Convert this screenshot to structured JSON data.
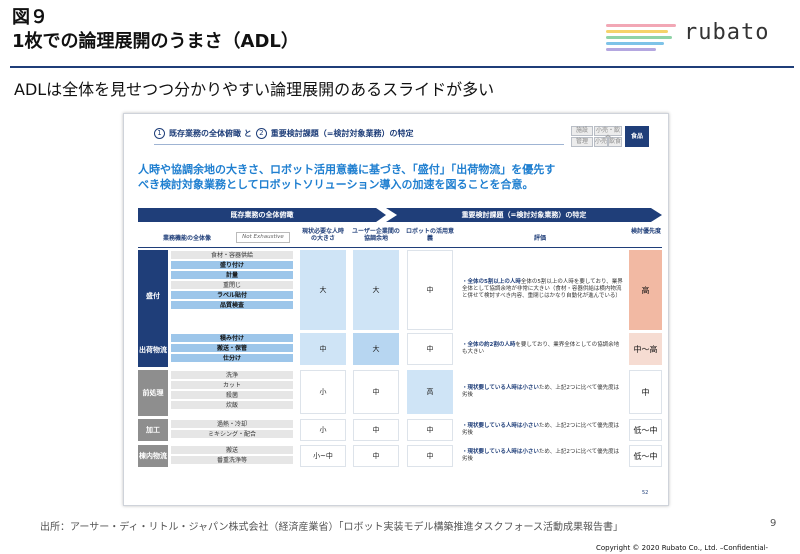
{
  "slide": {
    "title_line1": "図９",
    "title_line2": "1枚での論理展開のうまさ（ADL）",
    "subtitle": "ADLは全体を見せつつ分かりやすい論理展開のあるスライドが多い",
    "page_number": "9",
    "source": "出所：アーサー・ディ・リトル・ジャパン株式会社（経済産業省）「ロボット実装モデル構築推進タスクフォース活動成果報告書」",
    "copyright": "Copyright © 2020 Rubato Co., Ltd. –Confidential-"
  },
  "logo": {
    "text": "rubato",
    "line_colors": [
      "#f2a7b5",
      "#f5d36b",
      "#8fd3a7",
      "#7ec3e8",
      "#b4a7e0"
    ]
  },
  "inset": {
    "steps": {
      "n1": "1",
      "s1": "既存業務の全体俯瞰 と",
      "n2": "2",
      "s2": "重要検討課題（=検討対象業務）の特定"
    },
    "tags": [
      {
        "label": "施設",
        "selected": false
      },
      {
        "label": "小売・飲食",
        "selected": false
      },
      {
        "label": "管理",
        "selected": false
      },
      {
        "label": "小売",
        "selected": false
      },
      {
        "label": "飲食",
        "selected": false
      },
      {
        "label": "食品",
        "selected": true
      }
    ],
    "headline_1": "人時や協調余地の大きさ、ロボット活用意義に基づき、「盛付」「出荷物流」を優先す",
    "headline_2": "べき検討対象業務としてロボットソリューション導入の加速を図ることを合意。",
    "bar_left": "既存業務の全体俯瞰",
    "bar_right": "重要検討課題（=検討対象業務）の特定",
    "col_heads": {
      "func": "業務機能の全体像",
      "not_exhaustive": "Not Exhaustive",
      "labor": "現状必要な人時の大きさ",
      "user": "ユーザー企業間の協調余地",
      "robot": "ロボットの活用意義",
      "eval": "評価",
      "priority": "検討優先度"
    },
    "groups": [
      {
        "name": "盛付",
        "tasks": [
          {
            "t": "食材・容器供給",
            "hi": false
          },
          {
            "t": "盛り付け",
            "hi": true
          },
          {
            "t": "計量",
            "hi": true
          },
          {
            "t": "重閉じ",
            "hi": false
          },
          {
            "t": "ラベル貼付",
            "hi": true
          },
          {
            "t": "品質検査",
            "hi": true
          }
        ],
        "labor": "大",
        "user": "大",
        "robot": "中",
        "eval": "全体の5割以上の人時を要しており、業界全体として協調余地が非常に大きい（食材・容器供給は横内物流と併せて検討すべき内容、重閉じはかなり自動化が進んでいる）",
        "eval_bold": "・全体の5割以上の人時",
        "priority": "高"
      },
      {
        "name": "出荷物流",
        "tasks": [
          {
            "t": "積み付け",
            "hi": true
          },
          {
            "t": "搬送・保管",
            "hi": true
          },
          {
            "t": "仕分け",
            "hi": true
          }
        ],
        "labor": "中",
        "user": "大",
        "robot": "中",
        "eval": "を要しており、業界全体としての協調余地も大きい",
        "eval_bold": "・全体の約2割の人時",
        "priority": "中～高"
      },
      {
        "name": "前処理",
        "tasks": [
          {
            "t": "洗浄",
            "hi": false
          },
          {
            "t": "カット",
            "hi": false
          },
          {
            "t": "殺菌",
            "hi": false
          },
          {
            "t": "炊飯",
            "hi": false
          }
        ],
        "labor": "小",
        "user": "中",
        "robot": "高",
        "eval": "ため、上記2つに比べて優先度は劣後",
        "eval_bold": "・現状要している人時は小さい",
        "priority": "中"
      },
      {
        "name": "加工",
        "tasks": [
          {
            "t": "過熱・冷却",
            "hi": false
          },
          {
            "t": "ミキシング・配合",
            "hi": false
          }
        ],
        "labor": "小",
        "user": "中",
        "robot": "中",
        "eval": "ため、上記2つに比べて優先度は劣後",
        "eval_bold": "・現状要している人時は小さい",
        "priority": "低～中"
      },
      {
        "name": "棟内物流",
        "tasks": [
          {
            "t": "搬送",
            "hi": false
          },
          {
            "t": "番重洗浄等",
            "hi": false
          }
        ],
        "labor": "小~中",
        "user": "中",
        "robot": "中",
        "eval": "ため、上記2つに比べて優先度は劣後",
        "eval_bold": "・現状要している人時は小さい",
        "priority": "低～中"
      }
    ],
    "inner_page": "52"
  },
  "colors": {
    "navy": "#1f3e79",
    "headline_blue": "#1f7fd0",
    "priority_high": "#f2b9a3",
    "priority_mid": "#f6dcd2"
  }
}
